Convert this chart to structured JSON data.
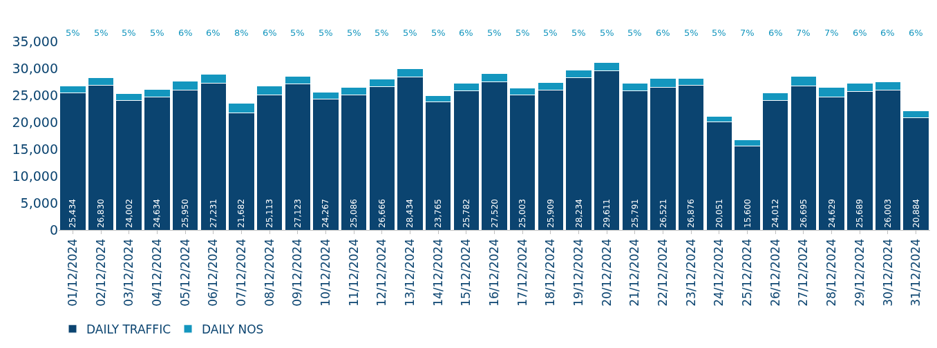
{
  "chart_data": {
    "type": "bar",
    "stacked": true,
    "legend": "bottom left",
    "categories": [
      "01/12/2024",
      "02/12/2024",
      "03/12/2024",
      "04/12/2024",
      "05/12/2024",
      "06/12/2024",
      "07/12/2024",
      "08/12/2024",
      "09/12/2024",
      "10/12/2024",
      "11/12/2024",
      "12/12/2024",
      "13/12/2024",
      "14/12/2024",
      "15/12/2024",
      "16/12/2024",
      "17/12/2024",
      "18/12/2024",
      "19/12/2024",
      "20/12/2024",
      "21/12/2024",
      "22/12/2024",
      "23/12/2024",
      "24/12/2024",
      "25/12/2024",
      "26/12/2024",
      "27/12/2024",
      "28/12/2024",
      "29/12/2024",
      "30/12/2024",
      "31/12/2024"
    ],
    "ylim": [
      0,
      35000
    ],
    "yticks": [
      {
        "value": 0,
        "label": "0"
      },
      {
        "value": 5000,
        "label": "5,000"
      },
      {
        "value": 10000,
        "label": "10,000"
      },
      {
        "value": 15000,
        "label": "15,000"
      },
      {
        "value": 20000,
        "label": "20,000"
      },
      {
        "value": 25000,
        "label": "25,000"
      },
      {
        "value": 30000,
        "label": "30,000"
      },
      {
        "value": 35000,
        "label": "35,000"
      }
    ],
    "series": [
      {
        "name": "DAILY TRAFFIC",
        "color": "#0b4470",
        "values": [
          25434,
          26830,
          24002,
          24634,
          25950,
          27231,
          21682,
          25113,
          27123,
          24267,
          25086,
          26666,
          28434,
          23765,
          25782,
          27520,
          25003,
          25909,
          28234,
          29611,
          25791,
          26521,
          26876,
          20051,
          15600,
          24012,
          26695,
          24629,
          25689,
          26003,
          20884
        ],
        "value_labels": [
          "25,434",
          "26,830",
          "24,002",
          "24,634",
          "25,950",
          "27,231",
          "21,682",
          "25,113",
          "27,123",
          "24,267",
          "25,086",
          "26,666",
          "28,434",
          "23,765",
          "25,782",
          "27,520",
          "25,003",
          "25,909",
          "28,234",
          "29,611",
          "25,791",
          "26,521",
          "26,876",
          "20,051",
          "15,600",
          "24,012",
          "26,695",
          "24,629",
          "25,689",
          "26,003",
          "20,884"
        ]
      },
      {
        "name": "DAILY NOS",
        "color": "#1496be",
        "values": [
          1300,
          1400,
          1300,
          1400,
          1700,
          1700,
          1800,
          1600,
          1400,
          1300,
          1400,
          1400,
          1500,
          1200,
          1500,
          1500,
          1400,
          1400,
          1500,
          1500,
          1400,
          1600,
          1300,
          1000,
          1100,
          1500,
          1800,
          1800,
          1600,
          1500,
          1200
        ]
      }
    ],
    "annotations": [
      "5%",
      "5%",
      "5%",
      "5%",
      "6%",
      "6%",
      "8%",
      "6%",
      "5%",
      "5%",
      "5%",
      "5%",
      "5%",
      "5%",
      "6%",
      "5%",
      "5%",
      "5%",
      "5%",
      "5%",
      "5%",
      "6%",
      "5%",
      "5%",
      "7%",
      "6%",
      "7%",
      "7%",
      "6%",
      "6%",
      "6%"
    ]
  }
}
